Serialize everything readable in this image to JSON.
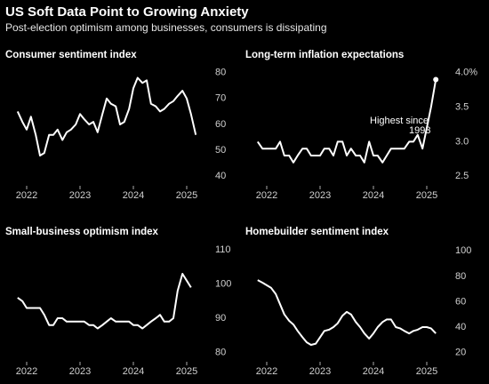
{
  "title": "US Soft Data Point to Growing Anxiety",
  "subtitle": "Post-election optimism among businesses, consumers is dissipating",
  "chart_data": [
    {
      "type": "line",
      "title": "Consumer sentiment index",
      "color": "#ffffff",
      "x": [
        2021.83,
        2021.92,
        2022.0,
        2022.08,
        2022.17,
        2022.25,
        2022.33,
        2022.42,
        2022.5,
        2022.58,
        2022.67,
        2022.75,
        2022.83,
        2022.92,
        2023.0,
        2023.08,
        2023.17,
        2023.25,
        2023.33,
        2023.42,
        2023.5,
        2023.58,
        2023.67,
        2023.75,
        2023.83,
        2023.92,
        2024.0,
        2024.08,
        2024.17,
        2024.25,
        2024.33,
        2024.42,
        2024.5,
        2024.58,
        2024.67,
        2024.75,
        2024.83,
        2024.92,
        2025.0,
        2025.08,
        2025.17
      ],
      "values": [
        65,
        61,
        58,
        63,
        56,
        48,
        49,
        56,
        56,
        58,
        54,
        57,
        58,
        60,
        64,
        62,
        60,
        61,
        57,
        64,
        70,
        68,
        67,
        60,
        61,
        66,
        74,
        78,
        76,
        77,
        68,
        67,
        65,
        66,
        68,
        69,
        71,
        73,
        70,
        64,
        56
      ],
      "xlim": [
        2021.5,
        2025.5
      ],
      "xticks": [
        2022,
        2023,
        2024,
        2025
      ],
      "ylim": [
        36,
        84
      ],
      "yticks": [
        40,
        50,
        60,
        70,
        80
      ],
      "grid": false
    },
    {
      "type": "line",
      "title": "Long-term inflation expectations",
      "color": "#ffffff",
      "x": [
        2021.83,
        2021.92,
        2022.0,
        2022.08,
        2022.17,
        2022.25,
        2022.33,
        2022.42,
        2022.5,
        2022.58,
        2022.67,
        2022.75,
        2022.83,
        2022.92,
        2023.0,
        2023.08,
        2023.17,
        2023.25,
        2023.33,
        2023.42,
        2023.5,
        2023.58,
        2023.67,
        2023.75,
        2023.83,
        2023.92,
        2024.0,
        2024.08,
        2024.17,
        2024.25,
        2024.33,
        2024.42,
        2024.5,
        2024.58,
        2024.67,
        2024.75,
        2024.83,
        2024.92,
        2025.0,
        2025.08,
        2025.17
      ],
      "values": [
        3.0,
        2.9,
        2.9,
        2.9,
        2.9,
        3.0,
        2.8,
        2.8,
        2.7,
        2.8,
        2.9,
        2.9,
        2.8,
        2.8,
        2.8,
        2.9,
        2.9,
        2.8,
        3.0,
        3.0,
        2.8,
        2.9,
        2.8,
        2.8,
        2.7,
        3.0,
        2.8,
        2.8,
        2.7,
        2.8,
        2.9,
        2.9,
        2.9,
        2.9,
        3.0,
        3.0,
        3.1,
        2.9,
        3.2,
        3.5,
        3.9
      ],
      "annotation": [
        "Highest since",
        "1993"
      ],
      "marker_last": true,
      "xlim": [
        2021.5,
        2025.5
      ],
      "xticks": [
        2022,
        2023,
        2024,
        2025
      ],
      "ylim": [
        2.35,
        4.15
      ],
      "yticks": [
        {
          "value": 2.5,
          "label": "2.5"
        },
        {
          "value": 3,
          "label": "3.0"
        },
        3.5,
        {
          "value": 4,
          "label": "4.0%"
        }
      ],
      "grid": false
    },
    {
      "type": "line",
      "title": "Small-business optimism index",
      "color": "#ffffff",
      "x": [
        2021.83,
        2021.92,
        2022.0,
        2022.08,
        2022.17,
        2022.25,
        2022.33,
        2022.42,
        2022.5,
        2022.58,
        2022.67,
        2022.75,
        2022.83,
        2022.92,
        2023.0,
        2023.08,
        2023.17,
        2023.25,
        2023.33,
        2023.42,
        2023.5,
        2023.58,
        2023.67,
        2023.75,
        2023.83,
        2023.92,
        2024.0,
        2024.08,
        2024.17,
        2024.25,
        2024.33,
        2024.42,
        2024.5,
        2024.58,
        2024.67,
        2024.75,
        2024.83,
        2024.92,
        2025.0,
        2025.08
      ],
      "values": [
        96,
        95,
        93,
        93,
        93,
        93,
        91,
        88,
        88,
        90,
        90,
        89,
        89,
        89,
        89,
        89,
        88,
        88,
        87,
        88,
        89,
        90,
        89,
        89,
        89,
        89,
        88,
        88,
        87,
        88,
        89,
        90,
        91,
        89,
        89,
        90,
        98,
        103,
        101,
        99
      ],
      "xlim": [
        2021.5,
        2025.5
      ],
      "xticks": [
        2022,
        2023,
        2024,
        2025
      ],
      "ylim": [
        77,
        113.4
      ],
      "yticks": [
        80,
        90,
        100,
        110
      ],
      "grid": false
    },
    {
      "type": "line",
      "title": "Homebuilder sentiment index",
      "color": "#ffffff",
      "x": [
        2021.83,
        2021.92,
        2022.0,
        2022.08,
        2022.17,
        2022.25,
        2022.33,
        2022.42,
        2022.5,
        2022.58,
        2022.67,
        2022.75,
        2022.83,
        2022.92,
        2023.0,
        2023.08,
        2023.17,
        2023.25,
        2023.33,
        2023.42,
        2023.5,
        2023.58,
        2023.67,
        2023.75,
        2023.83,
        2023.92,
        2024.0,
        2024.08,
        2024.17,
        2024.25,
        2024.33,
        2024.42,
        2024.5,
        2024.58,
        2024.67,
        2024.75,
        2024.83,
        2024.92,
        2025.0,
        2025.08,
        2025.17
      ],
      "values": [
        77,
        75,
        73,
        71,
        66,
        58,
        50,
        45,
        42,
        37,
        32,
        28,
        26,
        27,
        32,
        37,
        38,
        40,
        43,
        49,
        52,
        50,
        44,
        40,
        35,
        31,
        35,
        40,
        44,
        46,
        46,
        40,
        39,
        37,
        35,
        37,
        38,
        40,
        40,
        39,
        35
      ],
      "xlim": [
        2021.5,
        2025.5
      ],
      "xticks": [
        2022,
        2023,
        2024,
        2025
      ],
      "ylim": [
        12,
        110
      ],
      "yticks": [
        20,
        40,
        60,
        80,
        100
      ],
      "grid": false
    }
  ]
}
